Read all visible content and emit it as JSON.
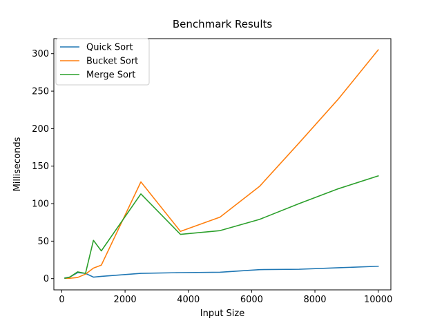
{
  "chart_data": {
    "type": "line",
    "title": "Benchmark Results",
    "xlabel": "Input Size",
    "ylabel": "Milliseconds",
    "xlim": [
      -250,
      10400
    ],
    "ylim": [
      -15,
      320
    ],
    "xticks": [
      0,
      2000,
      4000,
      6000,
      8000,
      10000
    ],
    "yticks": [
      0,
      50,
      100,
      150,
      200,
      250,
      300
    ],
    "grid": false,
    "legend_position": "top-left",
    "series": [
      {
        "name": "Quick Sort",
        "color": "#1f77b4",
        "points": [
          [
            100,
            1
          ],
          [
            250,
            2
          ],
          [
            500,
            8
          ],
          [
            750,
            7
          ],
          [
            1000,
            2
          ],
          [
            1250,
            3
          ],
          [
            2500,
            7
          ],
          [
            3750,
            8
          ],
          [
            5000,
            8.5
          ],
          [
            6250,
            12
          ],
          [
            7500,
            12.5
          ],
          [
            8750,
            14.5
          ],
          [
            10000,
            16.5
          ]
        ]
      },
      {
        "name": "Bucket Sort",
        "color": "#ff7f0e",
        "points": [
          [
            100,
            0.5
          ],
          [
            250,
            0.5
          ],
          [
            500,
            1.5
          ],
          [
            750,
            6
          ],
          [
            1000,
            14
          ],
          [
            1250,
            18
          ],
          [
            2500,
            129
          ],
          [
            3750,
            63
          ],
          [
            5000,
            82
          ],
          [
            6250,
            123
          ],
          [
            7500,
            181
          ],
          [
            8750,
            240
          ],
          [
            10000,
            305
          ]
        ]
      },
      {
        "name": "Merge Sort",
        "color": "#2ca02c",
        "points": [
          [
            100,
            0.5
          ],
          [
            250,
            2
          ],
          [
            500,
            9
          ],
          [
            750,
            7
          ],
          [
            1000,
            51
          ],
          [
            1250,
            37
          ],
          [
            2500,
            113
          ],
          [
            3750,
            59
          ],
          [
            5000,
            64
          ],
          [
            6250,
            79
          ],
          [
            7500,
            100
          ],
          [
            8750,
            120
          ],
          [
            10000,
            137
          ]
        ]
      }
    ]
  }
}
